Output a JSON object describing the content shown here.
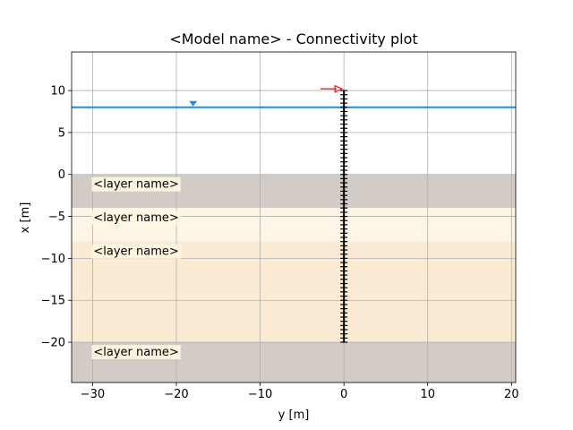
{
  "chart_data": {
    "type": "line",
    "title": "<Model name> - Connectivity plot",
    "xlabel": "y [m]",
    "ylabel": "x [m]",
    "xlim": [
      -32.5,
      20.5
    ],
    "ylim": [
      -24.8,
      14.6
    ],
    "xticks": [
      -30,
      -20,
      -10,
      0,
      10,
      20
    ],
    "yticks": [
      -20,
      -15,
      -10,
      -5,
      0,
      5,
      10
    ],
    "xtick_labels": [
      "−30",
      "−20",
      "−10",
      "0",
      "10",
      "20"
    ],
    "ytick_labels": [
      "−20",
      "−15",
      "−10",
      "−5",
      "0",
      "5",
      "10"
    ],
    "grid": true,
    "legend": "none",
    "layers": [
      {
        "label": "<layer name>",
        "top": 0,
        "bottom": -4,
        "color": "#d3cbc6"
      },
      {
        "label": "<layer name>",
        "top": -4,
        "bottom": -8,
        "color": "#fdf6e8"
      },
      {
        "label": "<layer name>",
        "top": -8,
        "bottom": -20,
        "color": "#fbebd4"
      },
      {
        "label": "<layer name>",
        "top": -20,
        "bottom": -24.8,
        "color": "#d3cbc6"
      }
    ],
    "water_level": 8,
    "water_marker_y": -18,
    "water_color": "#1e8ce6",
    "pile": {
      "y": 0,
      "top": 10,
      "bottom": -20,
      "node_spacing": 0.5,
      "color": "#000000"
    },
    "load_arrow": {
      "from_y": -2.8,
      "to_y": 0,
      "x": 10.2,
      "color": "#e8221a"
    }
  }
}
